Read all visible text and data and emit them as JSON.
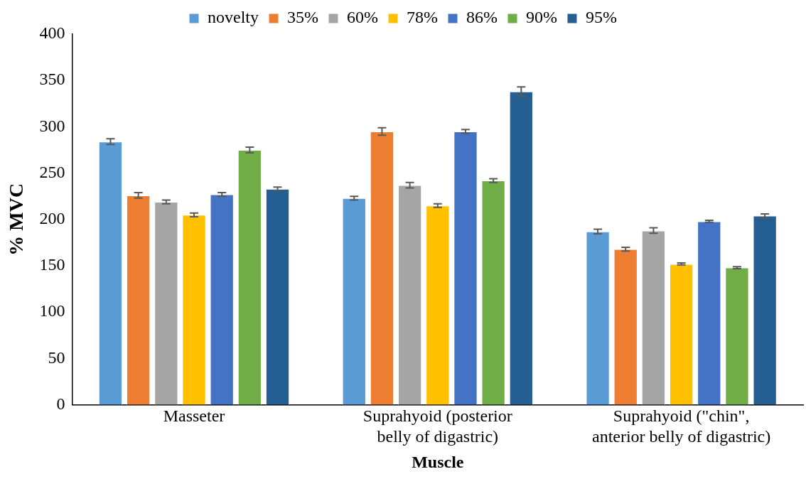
{
  "chart_data": {
    "type": "bar",
    "xlabel": "Muscle",
    "ylabel": "% MVC",
    "categories": [
      "Masseter",
      "Suprahyoid (posterior belly of digastric)",
      "Suprahyoid (\"chin\", anterior belly of digastric)"
    ],
    "series": [
      {
        "name": "novelty",
        "color": "#5b9bd5",
        "values": [
          284,
          223,
          187
        ],
        "errors": [
          3,
          2,
          2.5
        ]
      },
      {
        "name": "35%",
        "color": "#ed7d31",
        "values": [
          226,
          295,
          168
        ],
        "errors": [
          3,
          4,
          2
        ]
      },
      {
        "name": "60%",
        "color": "#a5a5a5",
        "values": [
          219,
          237,
          188
        ],
        "errors": [
          2,
          3,
          3
        ]
      },
      {
        "name": "78%",
        "color": "#ffc000",
        "values": [
          205,
          215,
          152
        ],
        "errors": [
          2,
          2,
          1
        ]
      },
      {
        "name": "86%",
        "color": "#4472c4",
        "values": [
          227,
          295,
          198
        ],
        "errors": [
          2,
          2,
          1
        ]
      },
      {
        "name": "90%",
        "color": "#70ad47",
        "values": [
          275,
          242,
          148
        ],
        "errors": [
          3,
          2,
          1
        ]
      },
      {
        "name": "95%",
        "color": "#255e91",
        "values": [
          233,
          338,
          204
        ],
        "errors": [
          2,
          5,
          2
        ]
      }
    ],
    "ylim": [
      0,
      400
    ],
    "yticks": [
      0,
      50,
      100,
      150,
      200,
      250,
      300,
      350,
      400
    ],
    "grid": false,
    "legend": "top"
  }
}
